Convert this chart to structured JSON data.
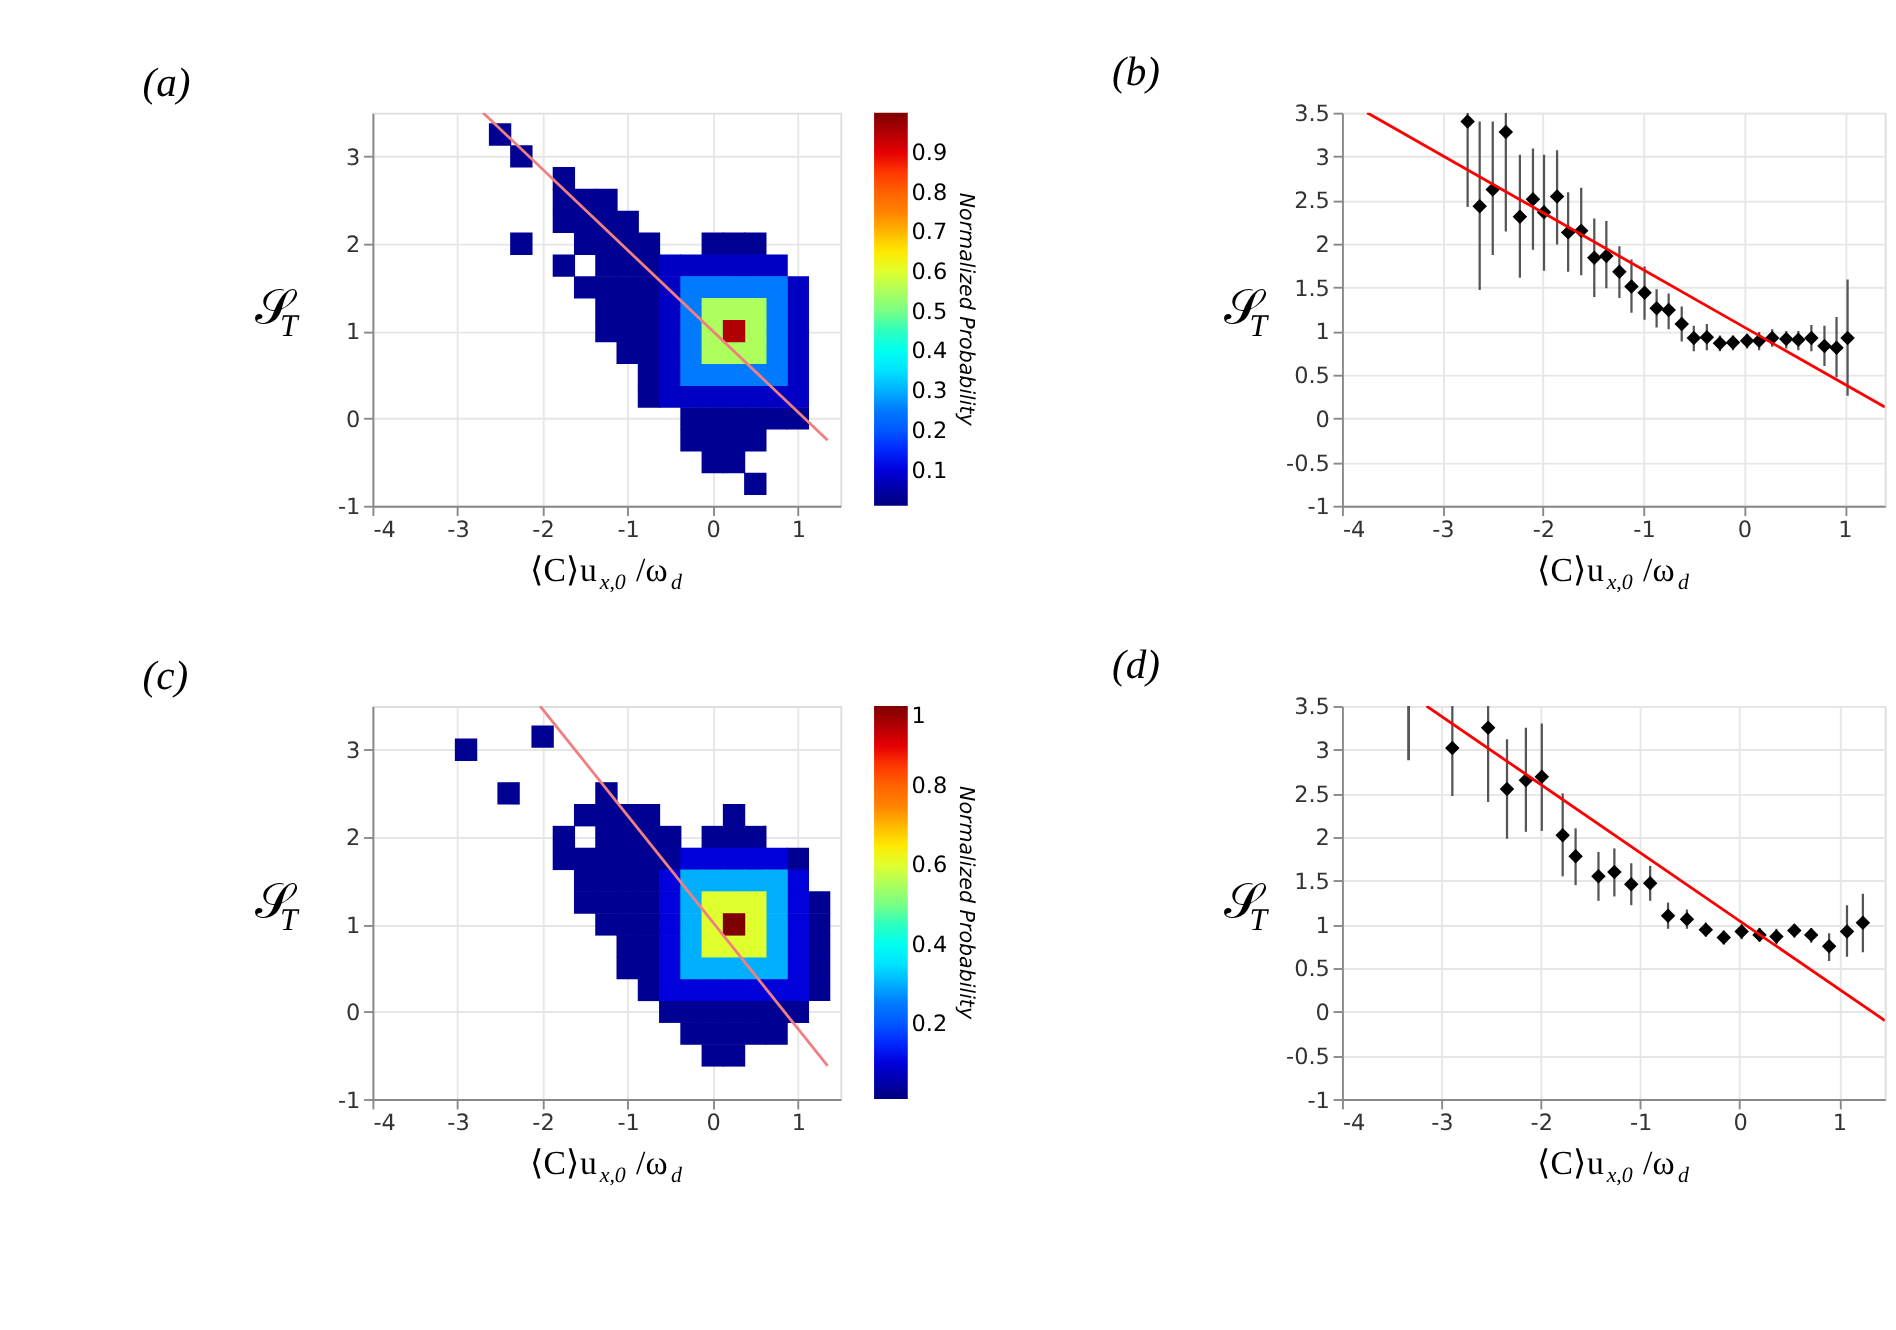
{
  "chart_data": [
    {
      "type": "scatter",
      "title": "(a)",
      "xlabel": "⟨C⟩u$_{x,0}$/ω$_{d}$",
      "ylabel": "𝒮$_{T}$",
      "clabel": "Normalized Probability",
      "clim": [
        0.01,
        1.0
      ],
      "cticks": [
        0.1,
        0.2,
        0.3,
        0.4,
        0.5,
        0.6,
        0.7,
        0.8,
        0.9
      ],
      "xlim": [
        -4,
        1.5
      ],
      "ylim": [
        -1,
        3.5
      ],
      "xticks": [
        -4,
        -3,
        -2,
        -1,
        0,
        1
      ],
      "yticks": [
        -1,
        0,
        1,
        2,
        3
      ],
      "grid": true,
      "series": [
        {
          "marker": "square",
          "x": [
            -2.5,
            -2.25,
            -1.75,
            -1.75,
            -1.5,
            -1.25,
            -1.75,
            -1.5,
            -1.25,
            -1,
            -2.25,
            -1.5,
            -1.25,
            -1,
            -0.75,
            0,
            0.25,
            0.5,
            -1.75,
            -1.25,
            -1,
            -0.75,
            -1.5,
            -1.25,
            -1,
            -0.75,
            -1.25,
            -1,
            -0.75,
            -1.25,
            -1,
            -0.75,
            -1,
            -0.75,
            -0.75,
            -0.75,
            -0.25,
            0,
            0.25,
            0.5,
            0.75,
            1,
            -0.25,
            0,
            0.25,
            0.5,
            0.5,
            0,
            0.25
          ],
          "values": [
            3.25,
            3.0,
            2.75,
            2.5,
            2.5,
            2.5,
            2.25,
            2.25,
            2.25,
            2.25,
            2,
            2,
            2,
            2,
            2,
            2,
            2,
            2,
            1.75,
            1.75,
            1.75,
            1.75,
            1.5,
            1.5,
            1.5,
            1.5,
            1.25,
            1.25,
            1.25,
            1,
            1,
            1,
            0.75,
            0.75,
            0.5,
            0.25,
            0,
            0,
            0,
            0,
            0,
            0,
            -0.25,
            -0.25,
            -0.25,
            -0.25,
            -0.75,
            -0.5,
            -0.5
          ],
          "cvalues": [
            0.03,
            0.03,
            0.03,
            0.03,
            0.03,
            0.03,
            0.03,
            0.03,
            0.03,
            0.03,
            0.03,
            0.03,
            0.03,
            0.03,
            0.03,
            0.03,
            0.03,
            0.03,
            0.03,
            0.03,
            0.03,
            0.03,
            0.03,
            0.03,
            0.03,
            0.03,
            0.03,
            0.03,
            0.03,
            0.03,
            0.03,
            0.03,
            0.03,
            0.03,
            0.03,
            0.03,
            0.03,
            0.03,
            0.03,
            0.03,
            0.03,
            0.03,
            0.03,
            0.03,
            0.03,
            0.03,
            0.03,
            0.03,
            0.03
          ]
        },
        {
          "marker": "square",
          "x": [
            -0.5,
            -0.25,
            0,
            0.25,
            0.5,
            0.75,
            -0.5,
            1,
            -0.5,
            1,
            -0.5,
            1,
            -0.5,
            1,
            -0.5,
            1,
            -0.5,
            -0.25,
            0,
            0.25,
            0.5,
            0.75,
            1
          ],
          "values": [
            1.75,
            1.75,
            1.75,
            1.75,
            1.75,
            1.75,
            1.5,
            1.5,
            1.25,
            1.25,
            1,
            1,
            0.75,
            0.75,
            0.5,
            0.5,
            0.25,
            0.25,
            0.25,
            0.25,
            0.25,
            0.25,
            0.25
          ],
          "cvalues": [
            0.08,
            0.08,
            0.08,
            0.08,
            0.08,
            0.08,
            0.08,
            0.08,
            0.08,
            0.08,
            0.08,
            0.08,
            0.08,
            0.08,
            0.08,
            0.08,
            0.08,
            0.08,
            0.08,
            0.08,
            0.08,
            0.08,
            0.08
          ]
        },
        {
          "marker": "square",
          "x": [
            -0.25,
            0,
            0.25,
            0.5,
            0.75,
            -0.25,
            0.75,
            -0.25,
            0.75,
            -0.25,
            0.75,
            -0.25,
            0,
            0.25,
            0.5,
            0.75
          ],
          "values": [
            1.5,
            1.5,
            1.5,
            1.5,
            1.5,
            1.25,
            1.25,
            1,
            1,
            0.75,
            0.75,
            0.5,
            0.5,
            0.5,
            0.5,
            0.5
          ],
          "cvalues": [
            0.25,
            0.25,
            0.25,
            0.25,
            0.25,
            0.25,
            0.25,
            0.25,
            0.25,
            0.25,
            0.25,
            0.25,
            0.25,
            0.25,
            0.25,
            0.25
          ]
        },
        {
          "marker": "square",
          "x": [
            0,
            0.25,
            0.5,
            0,
            0.5,
            0,
            0.25,
            0.5
          ],
          "values": [
            1.25,
            1.25,
            1.25,
            1,
            1,
            0.75,
            0.75,
            0.75
          ],
          "cvalues": [
            0.55,
            0.55,
            0.55,
            0.55,
            0.55,
            0.55,
            0.55,
            0.55
          ]
        },
        {
          "marker": "square",
          "x": [
            0.25
          ],
          "values": [
            1
          ],
          "cvalues": [
            0.95
          ]
        },
        {
          "type": "line",
          "color": "#f08080",
          "x": [
            -2.7,
            1.35
          ],
          "values": [
            3.5,
            -0.25
          ]
        }
      ]
    },
    {
      "type": "scatter",
      "title": "(b)",
      "xlabel": "⟨C⟩u$_{x,0}$/ω$_{d}$",
      "ylabel": "𝒮$_{T}$",
      "xlim": [
        -4,
        1.4
      ],
      "ylim": [
        -1,
        3.5
      ],
      "xticks": [
        -4,
        -3,
        -2,
        -1,
        0,
        1
      ],
      "yticks": [
        -1,
        -0.5,
        0,
        0.5,
        1,
        1.5,
        2,
        2.5,
        3,
        3.5
      ],
      "grid": true,
      "series": [
        {
          "marker": "diamond",
          "color": "#000000",
          "x": [
            -2.75,
            -2.63,
            -2.5,
            -2.37,
            -2.23,
            -2.1,
            -1.99,
            -1.86,
            -1.75,
            -1.62,
            -1.49,
            -1.37,
            -1.24,
            -1.12,
            -0.99,
            -0.87,
            -0.75,
            -0.62,
            -0.5,
            -0.37,
            -0.24,
            -0.11,
            0.03,
            0.15,
            0.28,
            0.42,
            0.54,
            0.67,
            0.8,
            0.92,
            1.03
          ],
          "values": [
            3.4,
            2.43,
            2.62,
            3.28,
            2.31,
            2.51,
            2.36,
            2.54,
            2.13,
            2.15,
            1.84,
            1.86,
            1.68,
            1.51,
            1.44,
            1.26,
            1.24,
            1.08,
            0.92,
            0.93,
            0.86,
            0.87,
            0.89,
            0.89,
            0.92,
            0.91,
            0.9,
            0.92,
            0.83,
            0.81,
            0.92
          ],
          "errors": [
            [
              2.42,
              3.5
            ],
            [
              1.47,
              3.4
            ],
            [
              1.87,
              3.4
            ],
            [
              2.14,
              3.5
            ],
            [
              1.61,
              3.02
            ],
            [
              1.93,
              3.09
            ],
            [
              1.69,
              3.02
            ],
            [
              1.99,
              3.07
            ],
            [
              1.68,
              2.59
            ],
            [
              1.64,
              2.64
            ],
            [
              1.39,
              2.29
            ],
            [
              1.49,
              2.26
            ],
            [
              1.38,
              1.97
            ],
            [
              1.21,
              1.82
            ],
            [
              1.13,
              1.74
            ],
            [
              1.04,
              1.48
            ],
            [
              1.02,
              1.43
            ],
            [
              0.88,
              1.28
            ],
            [
              0.77,
              1.06
            ],
            [
              0.78,
              1.08
            ],
            [
              0.77,
              0.95
            ],
            [
              0.78,
              0.95
            ],
            [
              0.8,
              0.97
            ],
            [
              0.78,
              0.99
            ],
            [
              0.82,
              1.02
            ],
            [
              0.8,
              1.0
            ],
            [
              0.78,
              1.0
            ],
            [
              0.77,
              1.07
            ],
            [
              0.6,
              1.06
            ],
            [
              0.47,
              1.16
            ],
            [
              0.26,
              1.59
            ]
          ]
        },
        {
          "type": "line",
          "color": "#ff0000",
          "x": [
            -3.75,
            1.4
          ],
          "values": [
            3.5,
            0.13
          ]
        }
      ]
    },
    {
      "type": "scatter",
      "title": "(c)",
      "xlabel": "⟨C⟩u$_{x,0}$/ω$_{d}$",
      "ylabel": "𝒮$_{T}$",
      "clabel": "Normalized Probability",
      "clim": [
        0.01,
        1.0
      ],
      "cticks": [
        0.2,
        0.4,
        0.6,
        0.8,
        1
      ],
      "xlim": [
        -4,
        1.5
      ],
      "ylim": [
        -1,
        3.5
      ],
      "xticks": [
        -4,
        -3,
        -2,
        -1,
        0,
        1
      ],
      "yticks": [
        -1,
        0,
        1,
        2,
        3
      ],
      "grid": true,
      "series": [
        {
          "marker": "square",
          "x": [
            -2.9,
            -2,
            -2.4,
            -1.25,
            -1.5,
            -1.25,
            -1,
            -0.75,
            0.25,
            -1.75,
            -1.25,
            -1,
            -0.75,
            -0.5,
            0,
            0.25,
            0.5,
            -1.75,
            -1.5,
            -1.25,
            -1,
            -0.75,
            -0.5,
            1,
            -1.5,
            -1.25,
            -1,
            -0.75,
            -1.5,
            -1.25,
            -1,
            -0.75,
            1.25,
            -1.25,
            -1,
            -0.75,
            1.25,
            -1,
            -0.75,
            1.25,
            -1,
            -0.75,
            1.25,
            -0.75,
            1.25,
            -0.5,
            -0.25,
            0,
            0.25,
            0.5,
            0.75,
            1,
            -0.25,
            0,
            0.25,
            0.5,
            0.75,
            0,
            0.25
          ],
          "values": [
            3,
            3.15,
            2.5,
            2.5,
            2.25,
            2.25,
            2.25,
            2.25,
            2.25,
            2,
            2,
            2,
            2,
            2,
            2,
            2,
            2,
            1.75,
            1.75,
            1.75,
            1.75,
            1.75,
            1.75,
            1.75,
            1.5,
            1.5,
            1.5,
            1.5,
            1.25,
            1.25,
            1.25,
            1.25,
            1.25,
            1,
            1,
            1,
            1,
            0.75,
            0.75,
            0.75,
            0.5,
            0.5,
            0.5,
            0.25,
            0.25,
            0,
            0,
            0,
            0,
            0,
            0,
            0,
            -0.25,
            -0.25,
            -0.25,
            -0.25,
            -0.25,
            -0.5,
            -0.5
          ],
          "cvalues": [
            0.03,
            0.03,
            0.03,
            0.03,
            0.03,
            0.03,
            0.03,
            0.03,
            0.03,
            0.03,
            0.03,
            0.03,
            0.03,
            0.03,
            0.03,
            0.03,
            0.03,
            0.03,
            0.03,
            0.03,
            0.03,
            0.03,
            0.03,
            0.03,
            0.03,
            0.03,
            0.03,
            0.03,
            0.03,
            0.03,
            0.03,
            0.03,
            0.03,
            0.03,
            0.03,
            0.03,
            0.03,
            0.03,
            0.03,
            0.03,
            0.03,
            0.03,
            0.03,
            0.03,
            0.03,
            0.03,
            0.03,
            0.03,
            0.03,
            0.03,
            0.03,
            0.03,
            0.03,
            0.03,
            0.03,
            0.03,
            0.03,
            0.03,
            0.03
          ]
        },
        {
          "marker": "square",
          "x": [
            -0.25,
            0,
            0.25,
            0.5,
            0.75,
            -0.5,
            1,
            -0.5,
            1,
            -0.5,
            1,
            -0.5,
            1,
            -0.5,
            1,
            -0.5,
            -0.25,
            0,
            0.25,
            0.5,
            0.75,
            1
          ],
          "values": [
            1.75,
            1.75,
            1.75,
            1.75,
            1.75,
            1.5,
            1.5,
            1.25,
            1.25,
            1,
            1,
            0.75,
            0.75,
            0.5,
            0.5,
            0.25,
            0.25,
            0.25,
            0.25,
            0.25,
            0.25,
            0.25
          ],
          "cvalues": [
            0.1,
            0.1,
            0.1,
            0.1,
            0.1,
            0.1,
            0.1,
            0.1,
            0.1,
            0.1,
            0.1,
            0.1,
            0.1,
            0.1,
            0.1,
            0.1,
            0.1,
            0.1,
            0.1,
            0.1,
            0.1,
            0.1
          ]
        },
        {
          "marker": "square",
          "x": [
            -0.25,
            0,
            0.25,
            0.5,
            0.75,
            -0.25,
            0.75,
            -0.25,
            0.75,
            -0.25,
            0.75,
            -0.25,
            0,
            0.25,
            0.5,
            0.75
          ],
          "values": [
            1.5,
            1.5,
            1.5,
            1.5,
            1.5,
            1.25,
            1.25,
            1,
            1,
            0.75,
            0.75,
            0.5,
            0.5,
            0.5,
            0.5,
            0.5
          ],
          "cvalues": [
            0.3,
            0.3,
            0.3,
            0.3,
            0.3,
            0.3,
            0.3,
            0.3,
            0.3,
            0.3,
            0.3,
            0.3,
            0.3,
            0.3,
            0.3,
            0.3
          ]
        },
        {
          "marker": "square",
          "x": [
            0,
            0.25,
            0.5,
            0,
            0.5,
            0,
            0.25,
            0.5
          ],
          "values": [
            1.25,
            1.25,
            1.25,
            1,
            1,
            0.75,
            0.75,
            0.75
          ],
          "cvalues": [
            0.6,
            0.6,
            0.6,
            0.6,
            0.6,
            0.6,
            0.6,
            0.6
          ]
        },
        {
          "marker": "square",
          "x": [
            0.25
          ],
          "values": [
            1
          ],
          "cvalues": [
            1.0
          ]
        },
        {
          "type": "line",
          "color": "#f08080",
          "x": [
            -2.03,
            1.35
          ],
          "values": [
            3.5,
            -0.62
          ]
        }
      ]
    },
    {
      "type": "scatter",
      "title": "(d)",
      "xlabel": "⟨C⟩u$_{x,0}$/ω$_{d}$",
      "ylabel": "𝒮$_{T}$",
      "xlim": [
        -4,
        1.46
      ],
      "ylim": [
        -1,
        3.5
      ],
      "xticks": [
        -4,
        -3,
        -2,
        -1,
        0,
        1
      ],
      "yticks": [
        -1,
        -0.5,
        0,
        0.5,
        1,
        1.5,
        2,
        2.5,
        3,
        3.5
      ],
      "grid": true,
      "series": [
        {
          "marker": "diamond",
          "color": "#000000",
          "x": [
            -2.89,
            -2.53,
            -2.34,
            -2.15,
            -1.99,
            -1.78,
            -1.65,
            -1.42,
            -1.26,
            -1.09,
            -0.9,
            -0.72,
            -0.53,
            -0.34,
            -0.16,
            0.02,
            0.2,
            0.37,
            0.55,
            0.72,
            0.9,
            1.08,
            1.24
          ],
          "values": [
            3.02,
            3.25,
            2.55,
            2.65,
            2.69,
            2.02,
            1.78,
            1.55,
            1.6,
            1.46,
            1.47,
            1.1,
            1.06,
            0.94,
            0.85,
            0.92,
            0.88,
            0.86,
            0.93,
            0.88,
            0.75,
            0.92,
            1.02
          ],
          "errors": [
            [
              2.47,
              3.5
            ],
            [
              2.4,
              3.5
            ],
            [
              1.98,
              3.12
            ],
            [
              2.06,
              3.25
            ],
            [
              2.07,
              3.3
            ],
            [
              1.55,
              2.5
            ],
            [
              1.45,
              2.1
            ],
            [
              1.27,
              1.83
            ],
            [
              1.32,
              1.87
            ],
            [
              1.22,
              1.7
            ],
            [
              1.27,
              1.67
            ],
            [
              0.95,
              1.25
            ],
            [
              0.95,
              1.17
            ],
            [
              0.86,
              1.02
            ],
            [
              0.77,
              0.93
            ],
            [
              0.83,
              1.0
            ],
            [
              0.8,
              0.96
            ],
            [
              0.77,
              0.95
            ],
            [
              0.85,
              1.0
            ],
            [
              0.79,
              0.96
            ],
            [
              0.58,
              0.9
            ],
            [
              0.63,
              1.22
            ],
            [
              0.68,
              1.35
            ]
          ]
        },
        {
          "type": "line",
          "color": "#555555",
          "x": [
            -3.33,
            -3.33
          ],
          "values": [
            2.88,
            3.5
          ]
        },
        {
          "type": "line",
          "color": "#ff0000",
          "x": [
            -3.15,
            1.46
          ],
          "values": [
            3.5,
            -0.1
          ]
        }
      ]
    }
  ]
}
